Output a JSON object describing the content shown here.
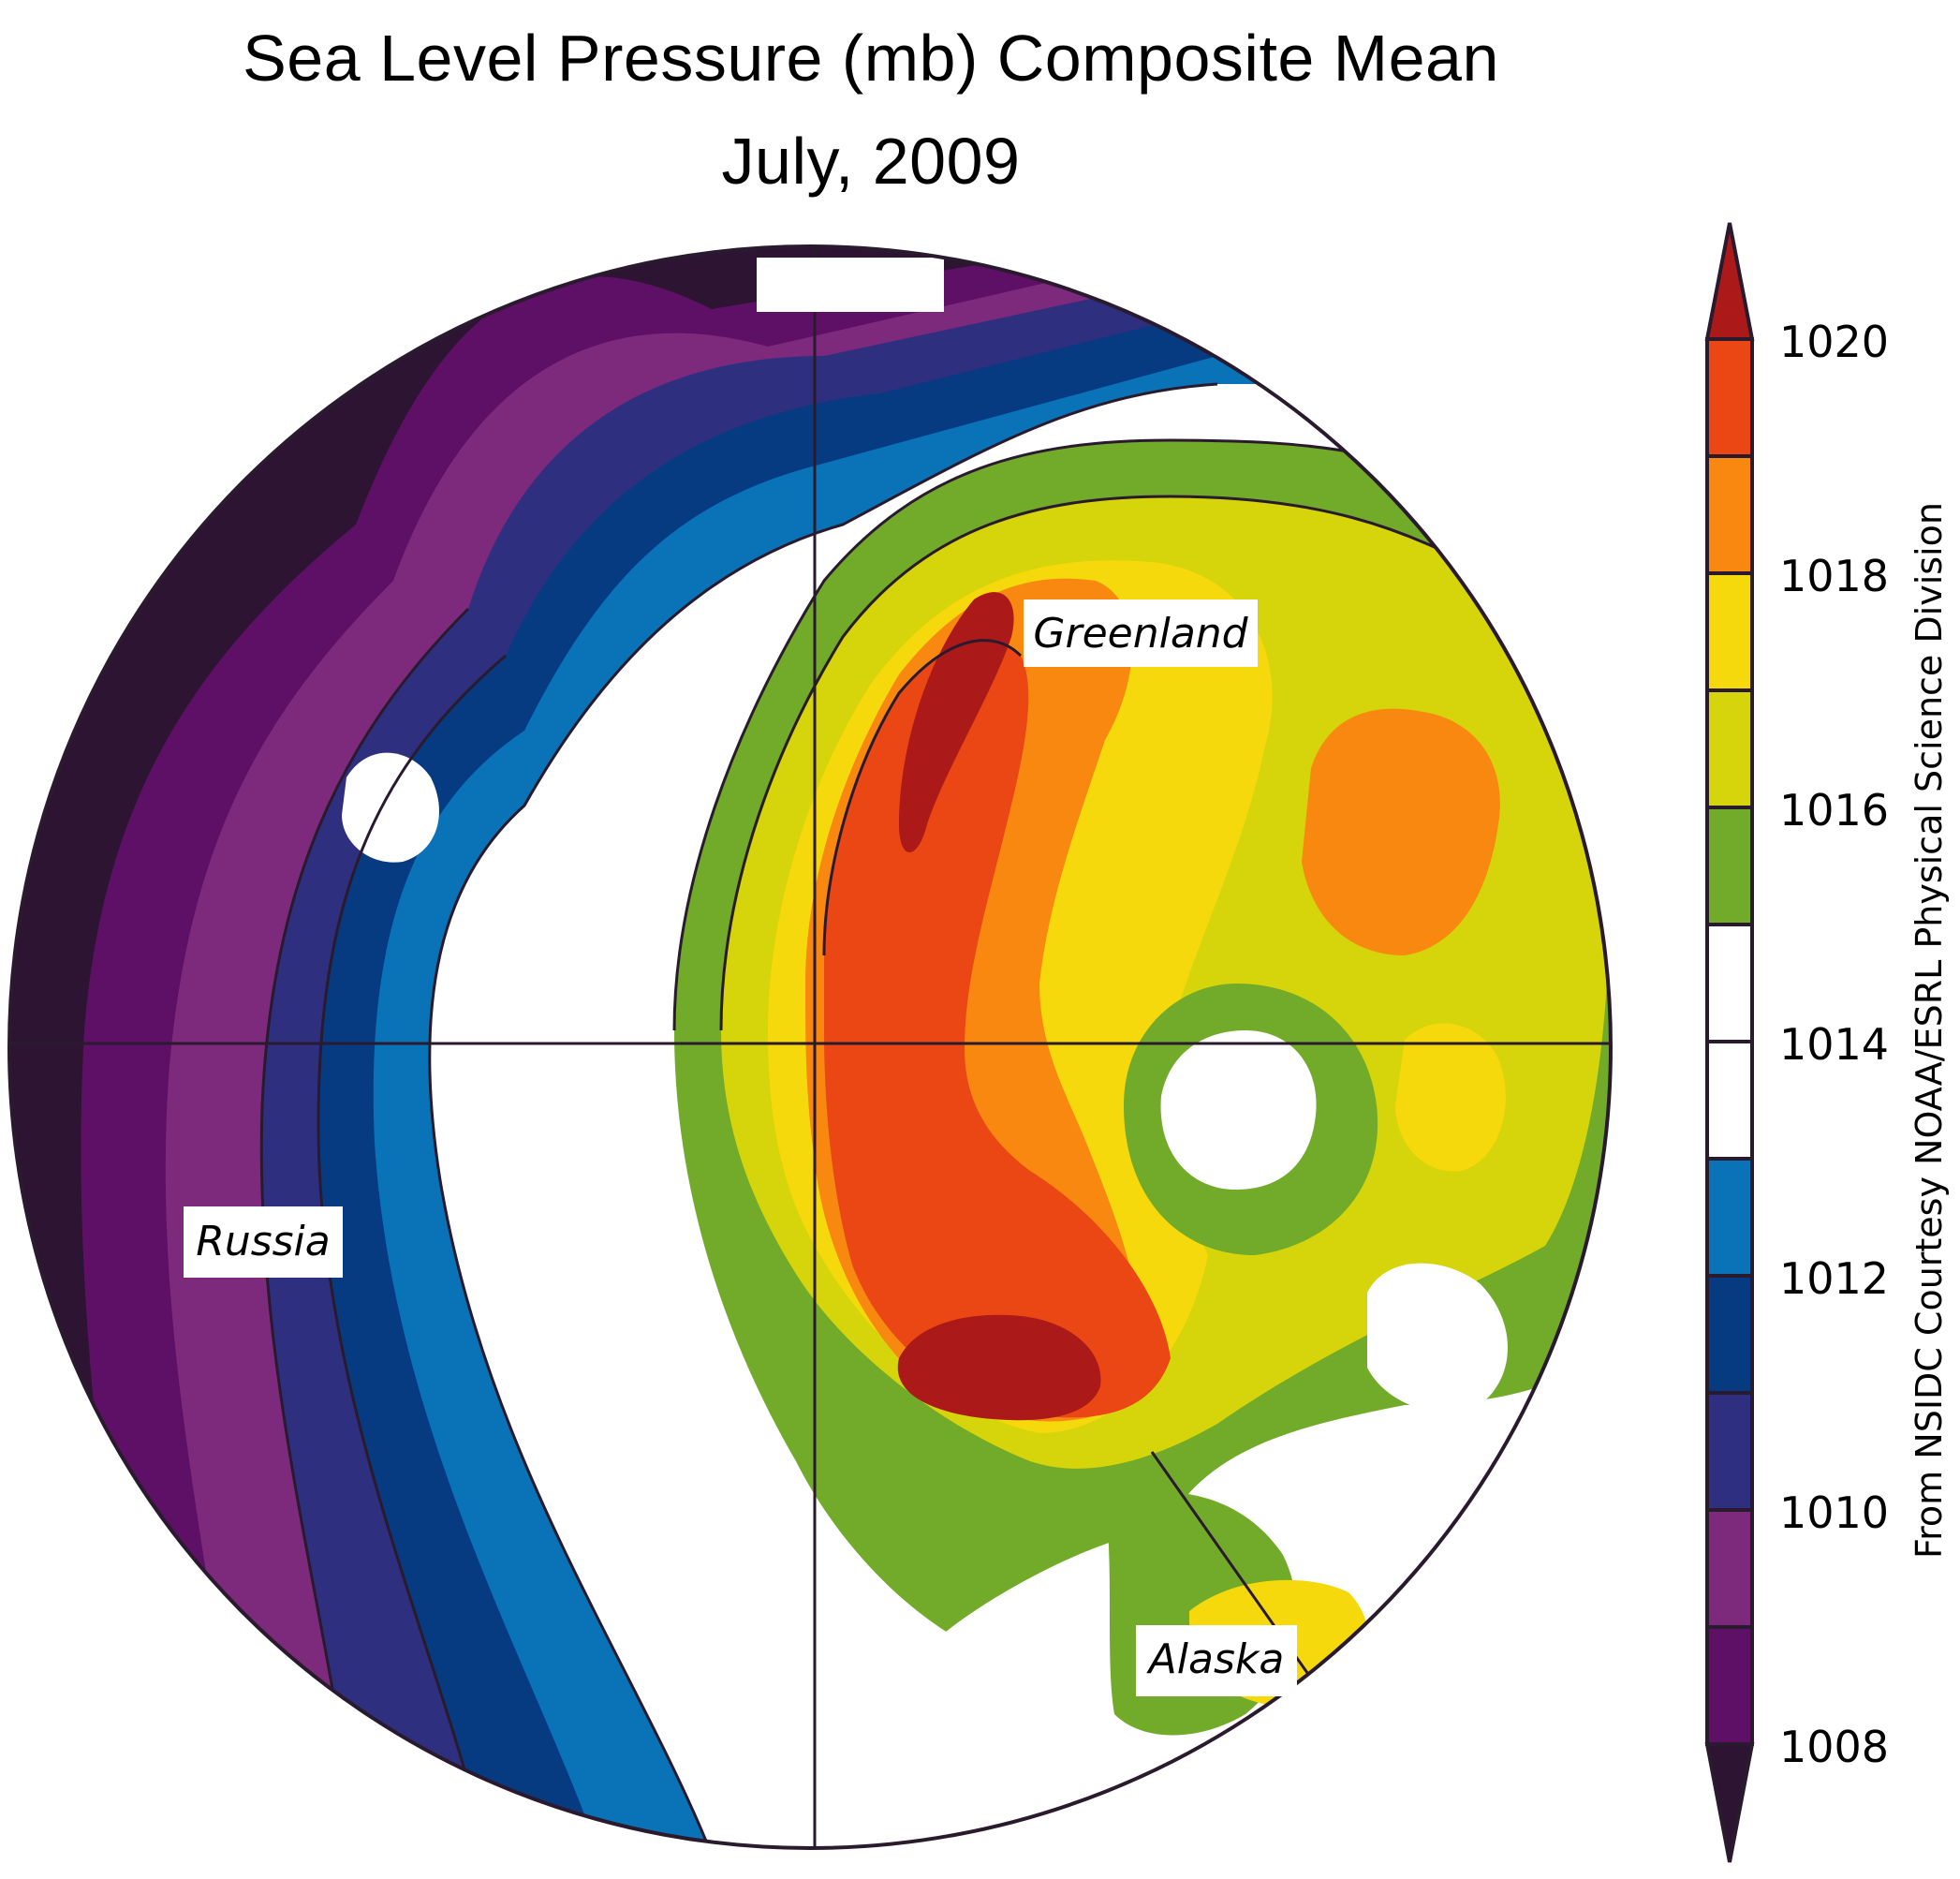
{
  "title": {
    "line1": "Sea Level Pressure (mb) Composite Mean",
    "line2": "July, 2009"
  },
  "map": {
    "projection": "north-polar-stereographic",
    "labels": {
      "greenland": "Greenland",
      "russia": "Russia",
      "alaska": "Alaska"
    }
  },
  "colorbar": {
    "unit": "mb",
    "levels": [
      1008,
      1009,
      1010,
      1011,
      1012,
      1013,
      1014,
      1015,
      1016,
      1017,
      1018,
      1019,
      1020
    ],
    "tick_labels": [
      "1020",
      "1018",
      "1016",
      "1014",
      "1012",
      "1010",
      "1008"
    ],
    "colors": {
      "below_1008": "#2d1433",
      "1008_1009": "#5e1066",
      "1009_1010": "#7d2a7c",
      "1010_1011": "#2e2f7e",
      "1011_1012": "#063b82",
      "1012_1013": "#0a72b7",
      "1013_1015": "#ffffff",
      "1015_1016": "#72aa2a",
      "1016_1017": "#d6d40a",
      "1017_1018": "#f6d90c",
      "1018_1019": "#f88810",
      "1019_1020": "#ea4715",
      "above_1020": "#ab1a19"
    }
  },
  "credit": "From NSIDC Courtesy NOAA/ESRL Physical Science Division"
}
